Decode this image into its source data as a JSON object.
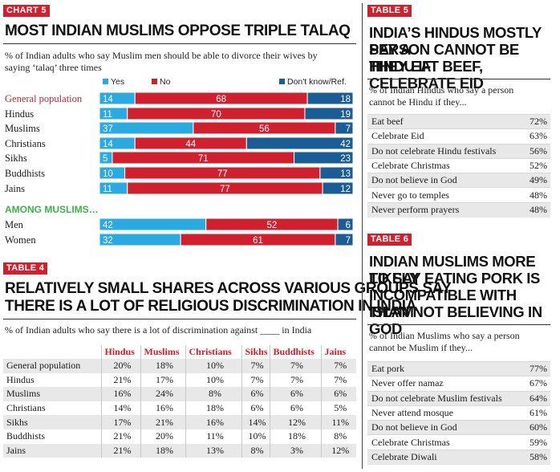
{
  "chart5": {
    "tag": "CHART 5",
    "title": "MOST INDIAN MUSLIMS OPPOSE TRIPLE TALAQ",
    "subtitle_line1": "% of Indian adults who say Muslim men should be able to divorce their wives by",
    "subtitle_line2": "saying ‘talaq’ three times",
    "among_label": "AMONG MUSLIMS…"
  },
  "chart_data": {
    "type": "bar",
    "orientation": "horizontal",
    "stacked": true,
    "title": "MOST INDIAN MUSLIMS OPPOSE TRIPLE TALAQ",
    "categories": [
      "General population",
      "Hindus",
      "Muslims",
      "Christians",
      "Sikhs",
      "Buddhists",
      "Jains",
      "Men",
      "Women"
    ],
    "series": [
      {
        "name": "Yes",
        "color": "#29abe2",
        "values": [
          14,
          11,
          37,
          14,
          5,
          10,
          11,
          42,
          32
        ]
      },
      {
        "name": "No",
        "color": "#d0202e",
        "values": [
          68,
          70,
          56,
          44,
          71,
          77,
          77,
          52,
          61
        ]
      },
      {
        "name": "Don't know/Ref.",
        "color": "#1a5c96",
        "values": [
          18,
          19,
          7,
          42,
          23,
          13,
          12,
          6,
          7
        ]
      }
    ],
    "legend_position": "top-right",
    "xlim": [
      0,
      100
    ]
  },
  "table4": {
    "tag": "TABLE 4",
    "title_line1": "RELATIVELY SMALL SHARES ACROSS VARIOUS GROUPS SAY",
    "title_line2": "THERE IS A LOT OF RELIGIOUS DISCRIMINATION IN INDIA",
    "subtitle": "% of Indian adults who say there is a lot of discrimination against ____ in India",
    "columns": [
      "Hindus",
      "Muslims",
      "Christians",
      "Sikhs",
      "Buddhists",
      "Jains"
    ],
    "rows": [
      {
        "label": "General population",
        "values": [
          "20%",
          "18%",
          "10%",
          "7%",
          "7%",
          "7%"
        ]
      },
      {
        "label": "Hindus",
        "values": [
          "21%",
          "17%",
          "10%",
          "7%",
          "7%",
          "7%"
        ]
      },
      {
        "label": "Muslims",
        "values": [
          "16%",
          "24%",
          "8%",
          "6%",
          "6%",
          "6%"
        ]
      },
      {
        "label": "Christians",
        "values": [
          "14%",
          "16%",
          "18%",
          "6%",
          "6%",
          "5%"
        ]
      },
      {
        "label": "Sikhs",
        "values": [
          "17%",
          "21%",
          "16%",
          "14%",
          "12%",
          "11%"
        ]
      },
      {
        "label": "Buddhists",
        "values": [
          "21%",
          "20%",
          "11%",
          "10%",
          "18%",
          "8%"
        ]
      },
      {
        "label": "Jains",
        "values": [
          "21%",
          "18%",
          "13%",
          "8%",
          "3%",
          "12%"
        ]
      }
    ]
  },
  "table5": {
    "tag": "TABLE 5",
    "title_line1": "INDIA’S HINDUS MOSTLY SAY A",
    "title_line2": "PERSON CANNOT BE HINDU IF",
    "title_line3": "THEY EAT BEEF, CELEBRATE EID",
    "subtitle_line1": "% of Indian Hindus who say a person",
    "subtitle_line2": "cannot be Hindu if they...",
    "rows": [
      {
        "label": "Eat beef",
        "value": "72%"
      },
      {
        "label": "Celebrate Eid",
        "value": "63%"
      },
      {
        "label": "Do not celebrate  Hindu festivals",
        "value": "56%"
      },
      {
        "label": "Celebrate Christmas",
        "value": "52%"
      },
      {
        "label": "Do not believe in God",
        "value": "49%"
      },
      {
        "label": "Never go to temples",
        "value": "48%"
      },
      {
        "label": "Never perform prayers",
        "value": "48%"
      }
    ]
  },
  "table6": {
    "tag": "TABLE 6",
    "title_line1": "INDIAN MUSLIMS MORE LIKELY",
    "title_line2": "TO SAY EATING PORK IS",
    "title_line3": "INCOMPATIBLE WITH ISLAM",
    "title_line4": "THAN NOT BELIEVING IN GOD",
    "subtitle_line1": "% of Indian Muslims who say a person",
    "subtitle_line2": "cannot be Muslim if they...",
    "rows": [
      {
        "label": "Eat pork",
        "value": "77%"
      },
      {
        "label": "Never offer namaz",
        "value": "67%"
      },
      {
        "label": "Do not celebrate  Muslim festivals",
        "value": "64%"
      },
      {
        "label": "Never attend mosque",
        "value": "61%"
      },
      {
        "label": "Do not believe in God",
        "value": "60%"
      },
      {
        "label": "Celebrate Christmas",
        "value": "59%"
      },
      {
        "label": "Celebrate Diwali",
        "value": "58%"
      }
    ]
  }
}
